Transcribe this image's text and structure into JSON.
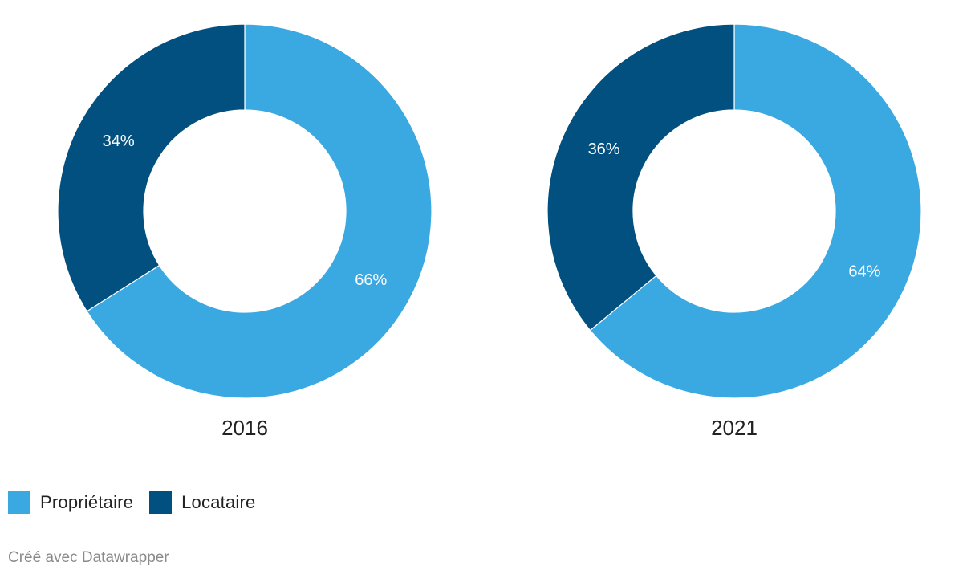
{
  "chart_data": [
    {
      "type": "pie",
      "title": "2016",
      "slices": [
        {
          "name": "Propriétaire",
          "value": 66,
          "label": "66%",
          "color": "#3aa9e2"
        },
        {
          "name": "Locataire",
          "value": 34,
          "label": "34%",
          "color": "#02507f"
        }
      ]
    },
    {
      "type": "pie",
      "title": "2021",
      "slices": [
        {
          "name": "Propriétaire",
          "value": 64,
          "label": "64%",
          "color": "#3aa9e2"
        },
        {
          "name": "Locataire",
          "value": 36,
          "label": "36%",
          "color": "#02507f"
        }
      ]
    }
  ],
  "legend": {
    "items": [
      {
        "label": "Propriétaire",
        "color": "#3aa9e2"
      },
      {
        "label": "Locataire",
        "color": "#02507f"
      }
    ]
  },
  "footer": {
    "credit": "Créé avec Datawrapper"
  }
}
